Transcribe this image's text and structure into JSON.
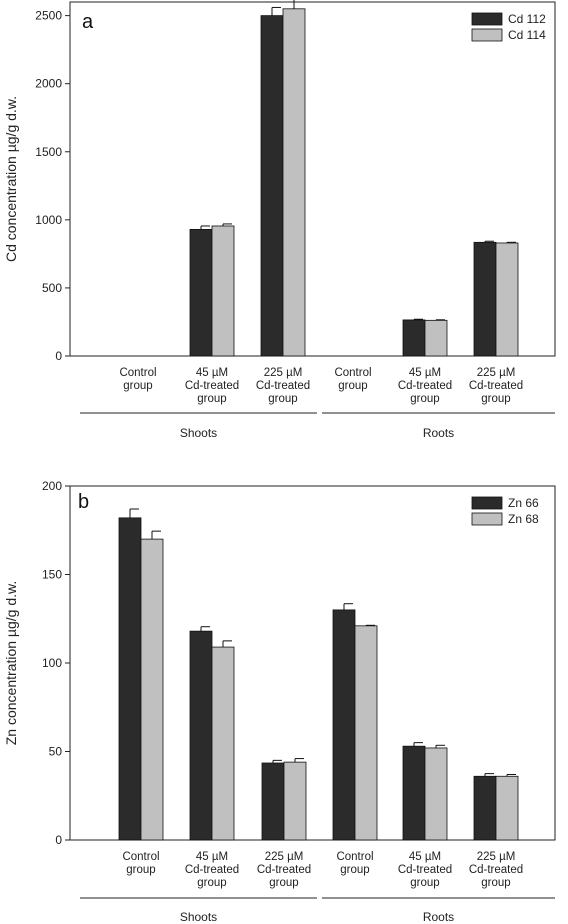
{
  "chart_data": [
    {
      "type": "bar",
      "panel_label": "a",
      "ylabel": "Cd concentration µg/g d.w.",
      "ylim": [
        0,
        2600
      ],
      "yticks": [
        0,
        500,
        1000,
        1500,
        2000,
        2500
      ],
      "categories": [
        [
          "Control",
          "group"
        ],
        [
          "45 µM",
          "Cd-treated",
          "group"
        ],
        [
          "225 µM",
          "Cd-treated",
          "group"
        ],
        [
          "Control",
          "group"
        ],
        [
          "45 µM",
          "Cd-treated",
          "group"
        ],
        [
          "225 µM",
          "Cd-treated",
          "group"
        ]
      ],
      "groups": [
        {
          "label": "Shoots",
          "categories": [
            0,
            1,
            2
          ]
        },
        {
          "label": "Roots",
          "categories": [
            3,
            4,
            5
          ]
        }
      ],
      "series": [
        {
          "name": "Cd 112",
          "color": "#2b2b2b",
          "values": [
            0,
            930,
            2500,
            0,
            265,
            835
          ],
          "errors": [
            0,
            25,
            60,
            0,
            5,
            8
          ]
        },
        {
          "name": "Cd 114",
          "color": "#c0c0c0",
          "values": [
            0,
            955,
            2550,
            0,
            262,
            830
          ],
          "errors": [
            0,
            15,
            90,
            0,
            4,
            5
          ]
        }
      ],
      "legend_position": "top-right"
    },
    {
      "type": "bar",
      "panel_label": "b",
      "ylabel": "Zn concentration µg/g d.w.",
      "ylim": [
        0,
        200
      ],
      "yticks": [
        0,
        50,
        100,
        150,
        200
      ],
      "categories": [
        [
          "Control",
          "group"
        ],
        [
          "45 µM",
          "Cd-treated",
          "group"
        ],
        [
          "225 µM",
          "Cd-treated",
          "group"
        ],
        [
          "Control",
          "group"
        ],
        [
          "45 µM",
          "Cd-treated",
          "group"
        ],
        [
          "225 µM",
          "Cd-treated",
          "group"
        ]
      ],
      "groups": [
        {
          "label": "Shoots",
          "categories": [
            0,
            1,
            2
          ]
        },
        {
          "label": "Roots",
          "categories": [
            3,
            4,
            5
          ]
        }
      ],
      "series": [
        {
          "name": "Zn 66",
          "color": "#2b2b2b",
          "values": [
            182,
            118,
            43.5,
            130,
            53,
            36
          ],
          "errors": [
            5,
            2.5,
            1.5,
            3.5,
            2,
            1.5
          ]
        },
        {
          "name": "Zn 68",
          "color": "#c0c0c0",
          "values": [
            170,
            109,
            44,
            121,
            52,
            36
          ],
          "errors": [
            4.5,
            3.5,
            2,
            0.3,
            1.5,
            1
          ]
        }
      ],
      "legend_position": "top-right"
    }
  ]
}
